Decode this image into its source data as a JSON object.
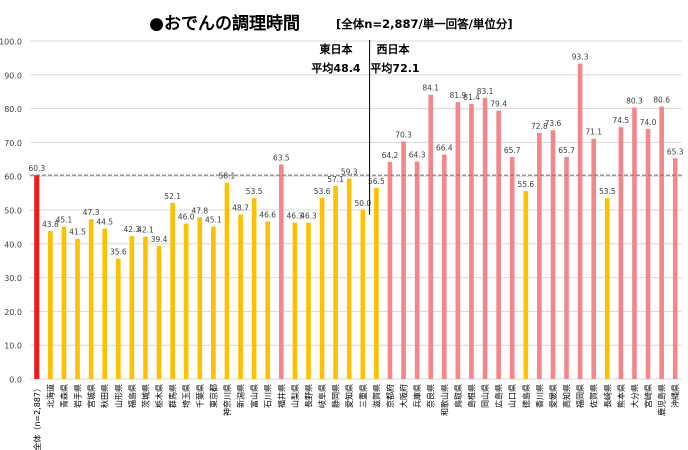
{
  "chart_data": {
    "type": "bar",
    "title": "●おでんの調理時間",
    "subtitle": "[全体n=2,887/単一回答/単位分]",
    "ylim": [
      0,
      100
    ],
    "yticks": [
      "0.0",
      "10.0",
      "20.0",
      "30.0",
      "40.0",
      "50.0",
      "60.0",
      "70.0",
      "80.0",
      "90.0",
      "100.0"
    ],
    "grid": true,
    "reference_value": 60.3,
    "annotations": {
      "east_label": "東日本",
      "east_avg": "平均48.4",
      "west_label": "西日本",
      "west_avg": "平均72.1"
    },
    "colors": {
      "total": "#e8201c",
      "east_normal": "#ffc000",
      "east_high": "#f4868c",
      "west_normal": "#f4868c",
      "west_low": "#ffc000",
      "grid": "#d9d9d9",
      "reference_line": "#7f7f7f",
      "divider": "#000000"
    },
    "categories": [
      "全体（n=2,887）",
      "北海道",
      "青森県",
      "岩手県",
      "宮城県",
      "秋田県",
      "山形県",
      "福島県",
      "茨城県",
      "栃木県",
      "群馬県",
      "埼玉県",
      "千葉県",
      "東京都",
      "神奈川県",
      "新潟県",
      "富山県",
      "石川県",
      "福井県",
      "山梨県",
      "長野県",
      "岐阜県",
      "静岡県",
      "愛知県",
      "三重県",
      "滋賀県",
      "京都府",
      "大阪府",
      "兵庫県",
      "奈良県",
      "和歌山県",
      "鳥取県",
      "島根県",
      "岡山県",
      "広島県",
      "山口県",
      "徳島県",
      "香川県",
      "愛媛県",
      "高知県",
      "福岡県",
      "佐賀県",
      "長崎県",
      "熊本県",
      "大分県",
      "宮崎県",
      "鹿児島県",
      "沖縄県"
    ],
    "values": [
      60.3,
      43.8,
      45.1,
      41.5,
      47.3,
      44.5,
      35.6,
      42.3,
      42.1,
      39.4,
      52.1,
      46.0,
      47.8,
      45.1,
      58.1,
      48.7,
      53.5,
      46.6,
      63.5,
      46.3,
      46.3,
      53.6,
      57.1,
      59.3,
      50.0,
      56.5,
      64.2,
      70.3,
      64.3,
      84.1,
      66.4,
      81.9,
      81.4,
      83.1,
      79.4,
      65.7,
      55.6,
      72.8,
      73.6,
      65.7,
      93.3,
      71.1,
      53.5,
      74.5,
      80.3,
      74.0,
      80.6,
      65.3
    ],
    "value_labels": [
      "60.3",
      "43.8",
      "45.1",
      "41.5",
      "47.3",
      "44.5",
      "35.6",
      "42.3",
      "42.1",
      "39.4",
      "52.1",
      "46.0",
      "47.8",
      "45.1",
      "58.1",
      "48.7",
      "53.5",
      "46.6",
      "63.5",
      "46.3",
      "46.3",
      "53.6",
      "57.1",
      "59.3",
      "50.0",
      "56.5",
      "64.2",
      "70.3",
      "64.3",
      "84.1",
      "66.4",
      "81.9",
      "81.4",
      "83.1",
      "79.4",
      "65.7",
      "55.6",
      "72.8",
      "73.6",
      "65.7",
      "93.3",
      "71.1",
      "53.5",
      "74.5",
      "80.3",
      "74.0",
      "80.6",
      "65.3"
    ],
    "color_keys": [
      "total",
      "east_normal",
      "east_normal",
      "east_normal",
      "east_normal",
      "east_normal",
      "east_normal",
      "east_normal",
      "east_normal",
      "east_normal",
      "east_normal",
      "east_normal",
      "east_normal",
      "east_normal",
      "east_normal",
      "east_normal",
      "east_normal",
      "east_normal",
      "east_high",
      "east_normal",
      "east_normal",
      "east_normal",
      "east_normal",
      "east_normal",
      "east_normal",
      "east_normal",
      "west_normal",
      "west_normal",
      "west_normal",
      "west_normal",
      "west_normal",
      "west_normal",
      "west_normal",
      "west_normal",
      "west_normal",
      "west_normal",
      "west_low",
      "west_normal",
      "west_normal",
      "west_normal",
      "west_normal",
      "west_normal",
      "west_low",
      "west_normal",
      "west_normal",
      "west_normal",
      "west_normal",
      "west_normal"
    ],
    "divider_after_index": 24
  }
}
